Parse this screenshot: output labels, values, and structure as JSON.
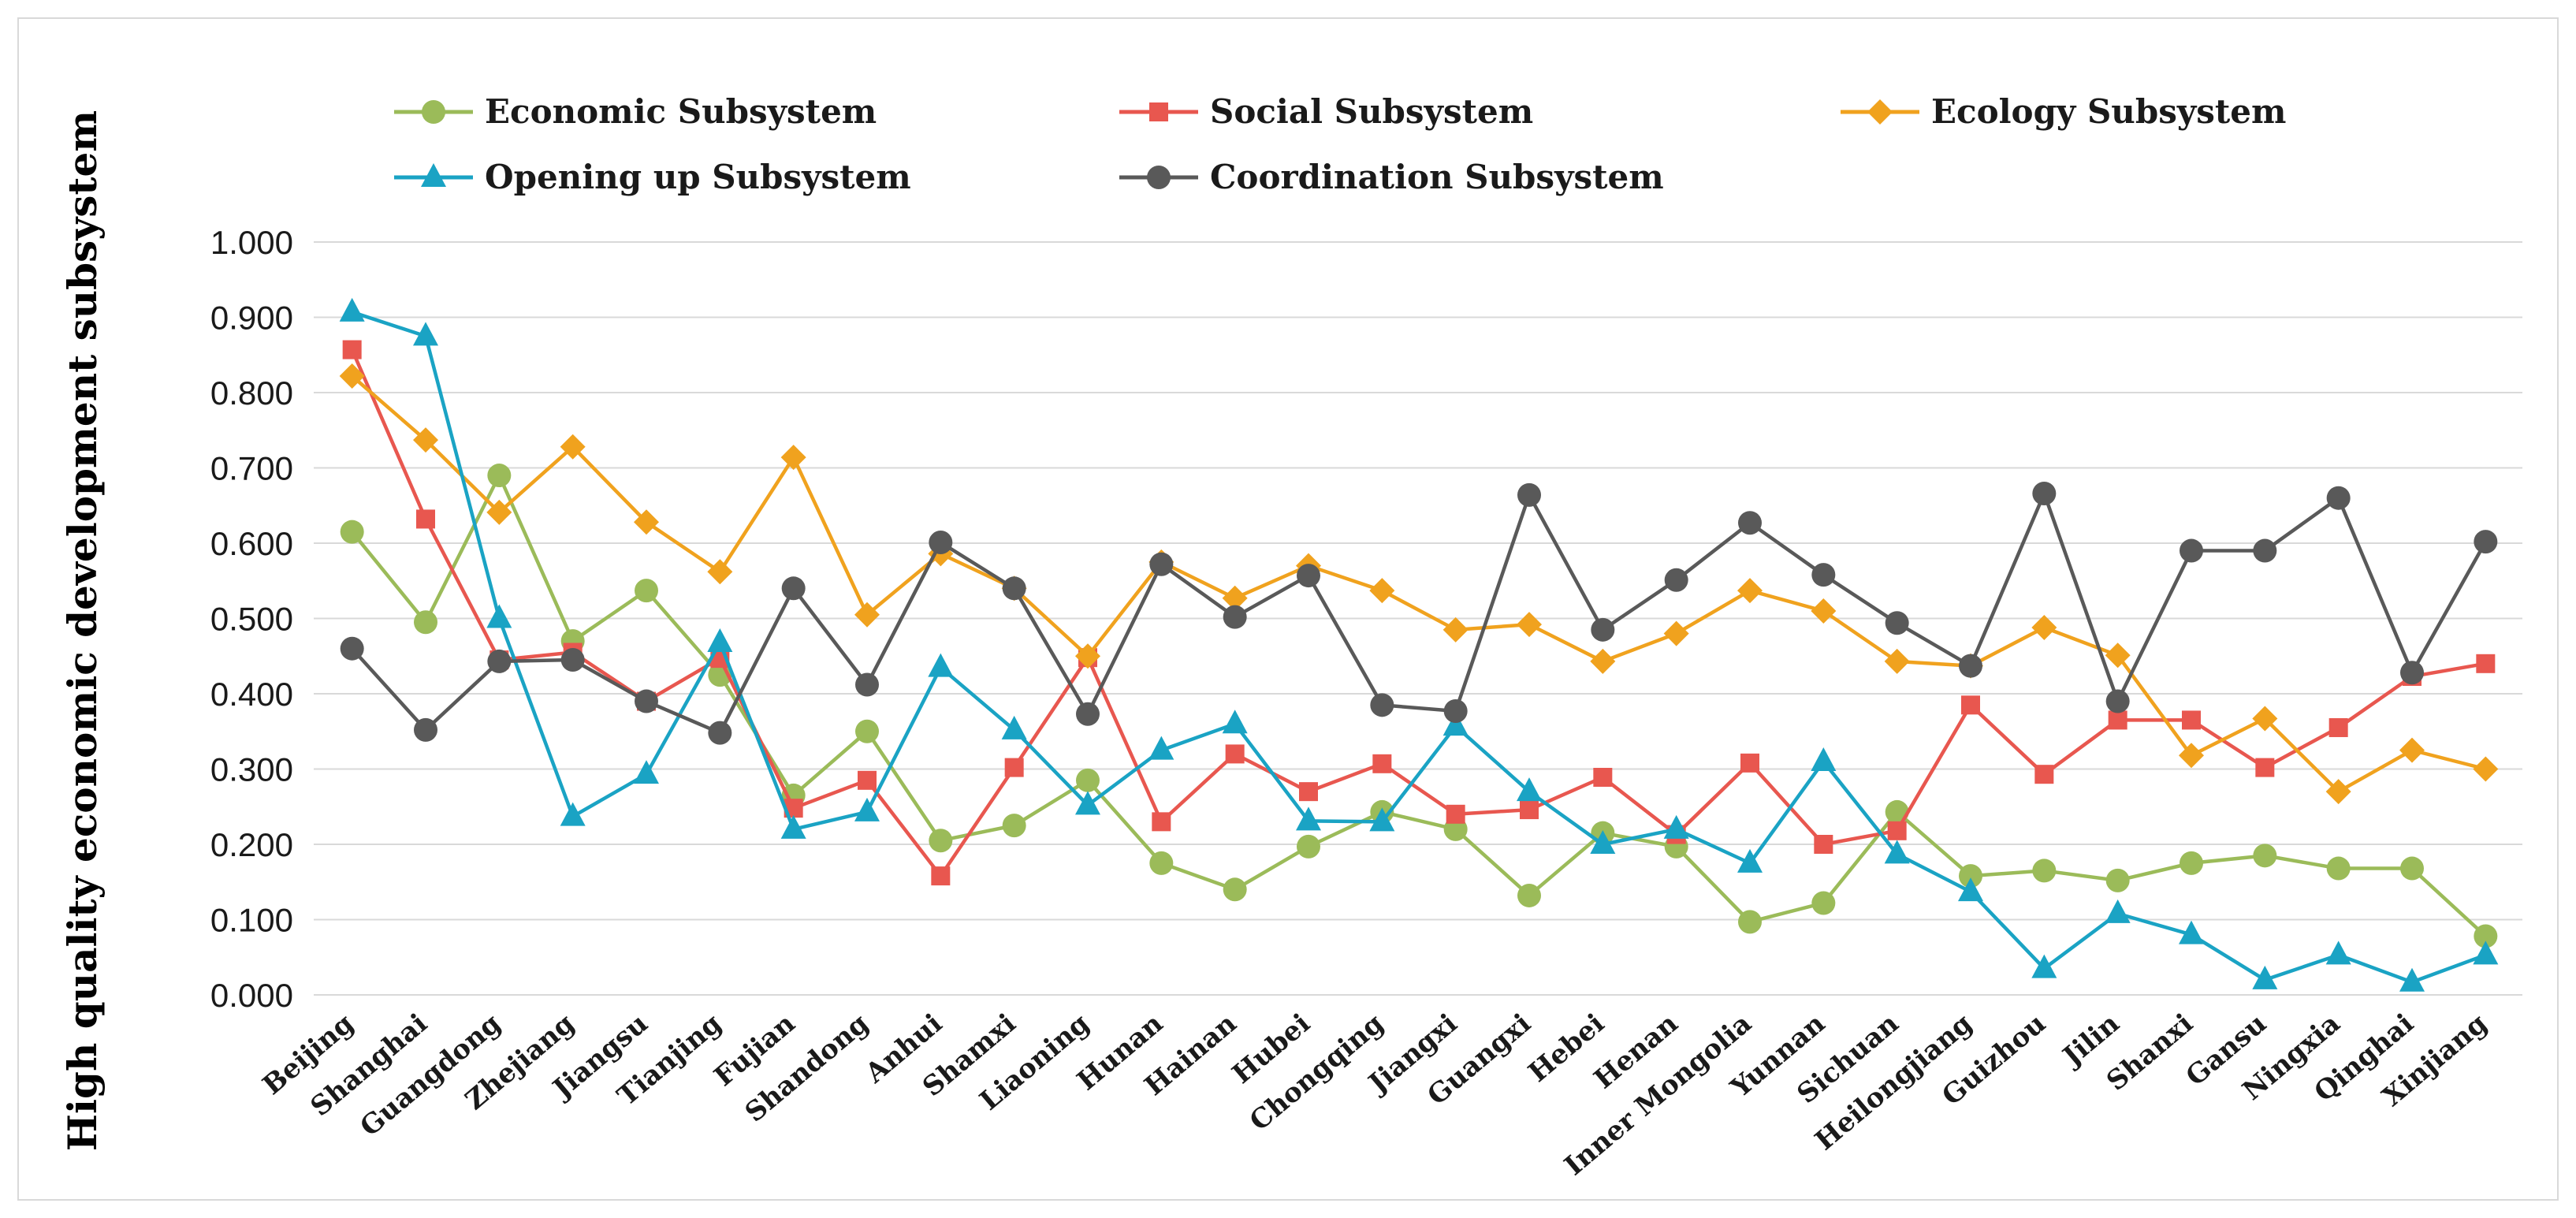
{
  "chart_data": {
    "type": "line",
    "title": "",
    "xlabel": "",
    "ylabel": "High quality economic development subsystem",
    "ylim": [
      0,
      1
    ],
    "yticks": [
      "0.000",
      "0.100",
      "0.200",
      "0.300",
      "0.400",
      "0.500",
      "0.600",
      "0.700",
      "0.800",
      "0.900",
      "1.000"
    ],
    "grid": true,
    "legend_position": "top",
    "categories": [
      "Beijing",
      "Shanghai",
      "Guangdong",
      "Zhejiang",
      "Jiangsu",
      "Tianjing",
      "Fujian",
      "Shandong",
      "Anhui",
      "Shamxi",
      "Liaoning",
      "Hunan",
      "Hainan",
      "Hubei",
      "Chongqing",
      "Jiangxi",
      "Guangxi",
      "Hebei",
      "Henan",
      "Inner Mongolia",
      "Yunnan",
      "Sichuan",
      "Heilongjiang",
      "Guizhou",
      "Jilin",
      "Shanxi",
      "Gansu",
      "Ningxia",
      "Qinghai",
      "Xinjiang"
    ],
    "series": [
      {
        "name": "Economic Subsystem",
        "color": "#9bbb59",
        "marker": "circle",
        "values": [
          0.615,
          0.495,
          0.69,
          0.47,
          0.537,
          0.425,
          0.265,
          0.35,
          0.205,
          0.225,
          0.285,
          0.175,
          0.14,
          0.197,
          0.243,
          0.22,
          0.132,
          0.215,
          0.197,
          0.097,
          0.122,
          0.243,
          0.158,
          0.165,
          0.152,
          0.175,
          0.185,
          0.168,
          0.168,
          0.078
        ]
      },
      {
        "name": "Social Subsystem",
        "color": "#e8574f",
        "marker": "square",
        "values": [
          0.857,
          0.632,
          0.445,
          0.455,
          0.39,
          0.447,
          0.248,
          0.285,
          0.158,
          0.302,
          0.448,
          0.23,
          0.32,
          0.27,
          0.307,
          0.24,
          0.246,
          0.289,
          0.213,
          0.308,
          0.2,
          0.218,
          0.385,
          0.293,
          0.365,
          0.365,
          0.302,
          0.355,
          0.423,
          0.44
        ]
      },
      {
        "name": "Ecology Subsystem",
        "color": "#f0a21e",
        "marker": "diamond",
        "values": [
          0.822,
          0.737,
          0.641,
          0.728,
          0.628,
          0.562,
          0.714,
          0.505,
          0.586,
          0.54,
          0.45,
          0.575,
          0.527,
          0.57,
          0.537,
          0.485,
          0.492,
          0.443,
          0.48,
          0.537,
          0.51,
          0.443,
          0.437,
          0.488,
          0.451,
          0.318,
          0.367,
          0.27,
          0.325,
          0.3
        ]
      },
      {
        "name": "Opening up Subsystem",
        "color": "#1aa3c4",
        "marker": "triangle",
        "values": [
          0.907,
          0.875,
          0.5,
          0.237,
          0.293,
          0.468,
          0.22,
          0.243,
          0.435,
          0.352,
          0.252,
          0.325,
          0.36,
          0.231,
          0.23,
          0.357,
          0.27,
          0.2,
          0.22,
          0.175,
          0.31,
          0.187,
          0.137,
          0.035,
          0.108,
          0.08,
          0.02,
          0.053,
          0.017,
          0.053
        ]
      },
      {
        "name": "Coordination Subsystem",
        "color": "#595959",
        "marker": "circle",
        "values": [
          0.46,
          0.352,
          0.443,
          0.445,
          0.39,
          0.348,
          0.54,
          0.412,
          0.601,
          0.54,
          0.373,
          0.572,
          0.502,
          0.557,
          0.385,
          0.377,
          0.664,
          0.485,
          0.551,
          0.627,
          0.558,
          0.494,
          0.437,
          0.666,
          0.39,
          0.59,
          0.59,
          0.66,
          0.428,
          0.602
        ]
      }
    ]
  }
}
